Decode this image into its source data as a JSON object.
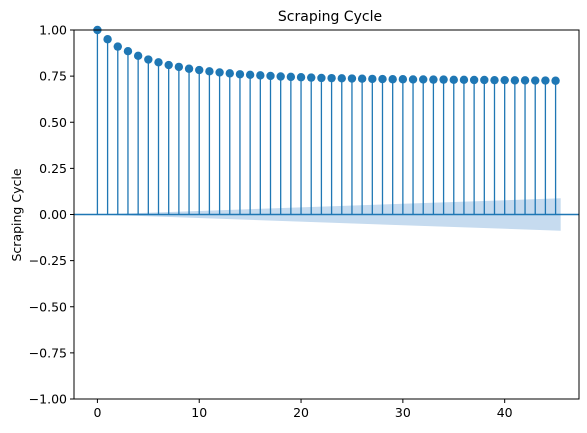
{
  "chart_data": {
    "type": "scatter",
    "subtype": "acf-stem",
    "title": "Scraping Cycle",
    "xlabel": "",
    "ylabel": "Scraping Cycle",
    "xlim": [
      -2.3,
      47.3
    ],
    "ylim": [
      -1.0,
      1.0
    ],
    "x_ticks": [
      0,
      10,
      20,
      30,
      40
    ],
    "x_tick_labels": [
      "0",
      "10",
      "20",
      "30",
      "40"
    ],
    "y_ticks": [
      -1.0,
      -0.75,
      -0.5,
      -0.25,
      0.0,
      0.25,
      0.5,
      0.75,
      1.0
    ],
    "y_tick_labels": [
      "−1.00",
      "−0.75",
      "−0.50",
      "−0.25",
      "0.00",
      "0.25",
      "0.50",
      "0.75",
      "1.00"
    ],
    "grid": false,
    "legend": "none",
    "series": [
      {
        "lags": [
          0,
          1,
          2,
          3,
          4,
          5,
          6,
          7,
          8,
          9,
          10,
          11,
          12,
          13,
          14,
          15,
          16,
          17,
          18,
          19,
          20,
          21,
          22,
          23,
          24,
          25,
          26,
          27,
          28,
          29,
          30,
          31,
          32,
          33,
          34,
          35,
          36,
          37,
          38,
          39,
          40,
          41,
          42,
          43,
          44,
          45
        ],
        "values": [
          1.0,
          0.95,
          0.91,
          0.885,
          0.86,
          0.84,
          0.825,
          0.81,
          0.8,
          0.79,
          0.783,
          0.776,
          0.77,
          0.765,
          0.76,
          0.757,
          0.754,
          0.751,
          0.748,
          0.746,
          0.744,
          0.742,
          0.74,
          0.739,
          0.738,
          0.737,
          0.736,
          0.735,
          0.734,
          0.733,
          0.733,
          0.732,
          0.732,
          0.731,
          0.731,
          0.73,
          0.73,
          0.729,
          0.729,
          0.728,
          0.728,
          0.727,
          0.727,
          0.726,
          0.726,
          0.725
        ]
      }
    ],
    "confidence_band": {
      "x_start": 0,
      "x_end": 45.5,
      "half_width_start": 0.0,
      "half_width_end": 0.088
    },
    "colors": {
      "marker": "#1f77b4",
      "band": "#c6dbef",
      "zero_line": "#1f77b4"
    }
  }
}
